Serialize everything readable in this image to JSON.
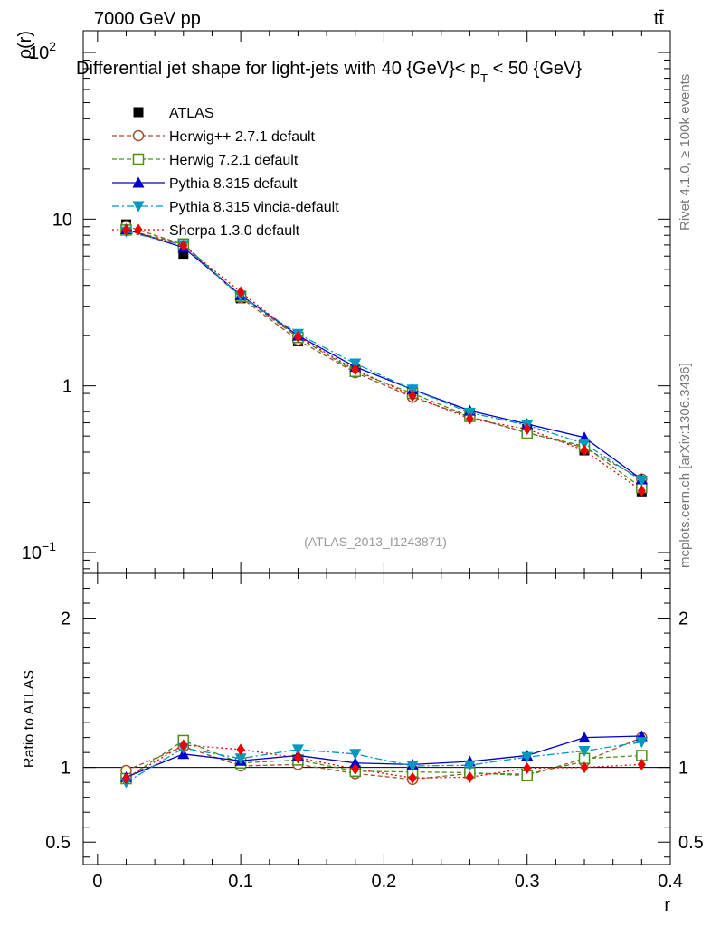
{
  "header": {
    "energy_label": "7000 GeV pp",
    "process_label": "tt̄"
  },
  "side_labels": {
    "rivet": "Rivet 4.1.0, ≥ 100k events",
    "mcplots": "mcplots.cern.ch [arXiv:1306.3436]"
  },
  "chart_data": [
    {
      "type": "line",
      "title": "Differential jet shape for light-jets with 40 {GeV}< p_T < 50 {GeV}",
      "title_parts": {
        "main": "Differential jet shape for light-jets with 40 {GeV}< p",
        "subscript": "T",
        "tail": " < 50 {GeV}"
      },
      "analysis_label": "(ATLAS_2013_I1243871)",
      "ylabel": "ρ(r)",
      "yscale": "log",
      "ylim": [
        0.075,
        135
      ],
      "xlim": [
        -0.01,
        0.4
      ],
      "yticks": [
        {
          "value": 100,
          "label": "10",
          "sup": "2"
        },
        {
          "value": 10,
          "label": "10",
          "sup": ""
        },
        {
          "value": 1,
          "label": "1",
          "sup": ""
        },
        {
          "value": 0.1,
          "label": "10",
          "sup": "−1"
        }
      ],
      "x": [
        0.02,
        0.06,
        0.1,
        0.14,
        0.18,
        0.22,
        0.26,
        0.3,
        0.34,
        0.38
      ],
      "series": [
        {
          "name": "ATLAS",
          "values": [
            9.3,
            6.2,
            3.35,
            1.85,
            1.25,
            0.93,
            0.68,
            0.55,
            0.41,
            0.23
          ],
          "color": "#000000",
          "marker": "square-filled",
          "line": "none"
        },
        {
          "name": "Herwig++ 2.7.1 default",
          "values": [
            9.1,
            7.05,
            3.38,
            1.88,
            1.2,
            0.855,
            0.65,
            0.525,
            0.425,
            0.276
          ],
          "color": "#a0522d",
          "marker": "circle-open",
          "line": "dashed"
        },
        {
          "name": "Herwig 7.2.1 default",
          "values": [
            8.6,
            7.1,
            3.45,
            1.95,
            1.22,
            0.9,
            0.655,
            0.52,
            0.435,
            0.245
          ],
          "color": "#4a8f1a",
          "marker": "square-open",
          "line": "dashed"
        },
        {
          "name": "Pythia 8.315 default",
          "values": [
            8.7,
            6.75,
            3.5,
            2.0,
            1.3,
            0.95,
            0.71,
            0.59,
            0.49,
            0.275
          ],
          "color": "#0000cc",
          "marker": "triangle-up",
          "line": "solid"
        },
        {
          "name": "Pythia 8.315 vincia-default",
          "values": [
            8.4,
            7.0,
            3.45,
            2.05,
            1.36,
            0.95,
            0.69,
            0.58,
            0.45,
            0.27
          ],
          "color": "#0099bb",
          "marker": "triangle-down",
          "line": "dashdot"
        },
        {
          "name": "Sherpa 1.3.0 default",
          "values": [
            8.6,
            6.95,
            3.65,
            1.97,
            1.25,
            0.87,
            0.635,
            0.55,
            0.41,
            0.235
          ],
          "color": "#ee0000",
          "marker": "diamond",
          "line": "dotted"
        }
      ]
    },
    {
      "type": "line",
      "title": "",
      "ylabel": "Ratio to ATLAS",
      "xlabel": "r",
      "ylim": [
        0.35,
        2.3
      ],
      "xlim": [
        -0.01,
        0.4
      ],
      "yticks": [
        {
          "value": 0.5,
          "label": "0.5"
        },
        {
          "value": 1,
          "label": "1"
        },
        {
          "value": 2,
          "label": "2"
        }
      ],
      "xticks": [
        {
          "value": 0,
          "label": "0"
        },
        {
          "value": 0.1,
          "label": "0.1"
        },
        {
          "value": 0.2,
          "label": "0.2"
        },
        {
          "value": 0.3,
          "label": "0.3"
        },
        {
          "value": 0.4,
          "label": "0.4"
        }
      ],
      "reference_line": 1,
      "x": [
        0.02,
        0.06,
        0.1,
        0.14,
        0.18,
        0.22,
        0.26,
        0.3,
        0.34,
        0.38
      ],
      "series": [
        {
          "name": "Herwig++ 2.7.1 default",
          "values": [
            0.98,
            1.14,
            1.01,
            1.02,
            0.96,
            0.92,
            0.96,
            0.955,
            1.04,
            1.2
          ],
          "color": "#a0522d",
          "marker": "circle-open",
          "line": "dashed"
        },
        {
          "name": "Herwig 7.2.1 default",
          "values": [
            0.925,
            1.18,
            1.03,
            1.05,
            0.975,
            0.97,
            0.965,
            0.945,
            1.06,
            1.08
          ],
          "color": "#4a8f1a",
          "marker": "square-open",
          "line": "dashed"
        },
        {
          "name": "Pythia 8.315 default",
          "values": [
            0.935,
            1.09,
            1.045,
            1.08,
            1.03,
            1.02,
            1.04,
            1.08,
            1.2,
            1.21
          ],
          "color": "#0000cc",
          "marker": "triangle-up",
          "line": "solid"
        },
        {
          "name": "Pythia 8.315 vincia-default",
          "values": [
            0.9,
            1.13,
            1.06,
            1.12,
            1.09,
            1.01,
            1.015,
            1.07,
            1.11,
            1.17
          ],
          "color": "#0099bb",
          "marker": "triangle-down",
          "line": "dashdot"
        },
        {
          "name": "Sherpa 1.3.0 default",
          "values": [
            0.925,
            1.15,
            1.12,
            1.065,
            0.99,
            0.93,
            0.935,
            0.995,
            1.0,
            1.02
          ],
          "color": "#ee0000",
          "marker": "diamond",
          "line": "dotted"
        }
      ]
    }
  ]
}
